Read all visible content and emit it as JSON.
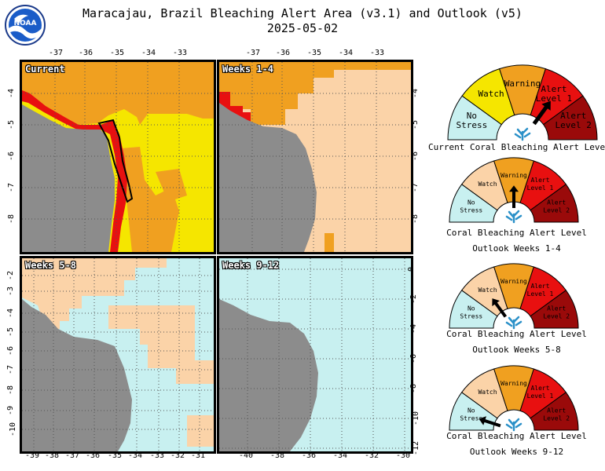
{
  "header": {
    "title": "Maracajau, Brazil Bleaching Alert Area (v3.1) and Outlook (v5)",
    "date": "2025-05-02",
    "logo_text": "NOAA"
  },
  "colors": {
    "no_stress": "#c8f0f0",
    "watch": "#f5e600",
    "warning": "#f0a020",
    "alert1": "#e81010",
    "alert2": "#9a0a0a",
    "outlook_watch": "#fbd3a8",
    "land": "#8c8c8c",
    "grid": "#555555"
  },
  "panels": [
    {
      "label": "Current"
    },
    {
      "label": "Weeks 1-4"
    },
    {
      "label": "Weeks 5-8"
    },
    {
      "label": "Weeks 9-12"
    }
  ],
  "axes": {
    "top_left_x": [
      "-37",
      "-36",
      "-35",
      "-34",
      "-33"
    ],
    "top_right_x": [
      "-37",
      "-36",
      "-35",
      "-34",
      "-33"
    ],
    "bottom_left_x": [
      "-39",
      "-38",
      "-37",
      "-36",
      "-35",
      "-34",
      "-33",
      "-32",
      "-31"
    ],
    "bottom_right_x": [
      "-40",
      "-38",
      "-36",
      "-34",
      "-32",
      "-30"
    ],
    "top_left_y": [
      "-4",
      "-5",
      "-6",
      "-7",
      "-8"
    ],
    "top_right_y": [
      "-4",
      "-5",
      "-6",
      "-7",
      "-8"
    ],
    "bottom_left_y": [
      "-2",
      "-3",
      "-4",
      "-5",
      "-6",
      "-7",
      "-8",
      "-9",
      "-10"
    ],
    "bottom_right_y": [
      "0",
      "-2",
      "-4",
      "-6",
      "-8",
      "-10",
      "-12"
    ]
  },
  "gauge_labels": {
    "no_stress": "No\nStress",
    "watch": "Watch",
    "warning": "Warning",
    "alert1": "Alert\nLevel 1",
    "alert2": "Alert\nLevel 2"
  },
  "gauges": [
    {
      "caption": "Current Coral Bleaching Alert Level",
      "caption2": "",
      "level": 3.5
    },
    {
      "caption": "Coral Bleaching Alert Level",
      "caption2": "Outlook Weeks 1-4",
      "level": 2.5
    },
    {
      "caption": "Coral Bleaching Alert Level",
      "caption2": "Outlook Weeks 5-8",
      "level": 1.5
    },
    {
      "caption": "Coral Bleaching Alert Level",
      "caption2": "Outlook Weeks 9-12",
      "level": 0.5
    }
  ]
}
